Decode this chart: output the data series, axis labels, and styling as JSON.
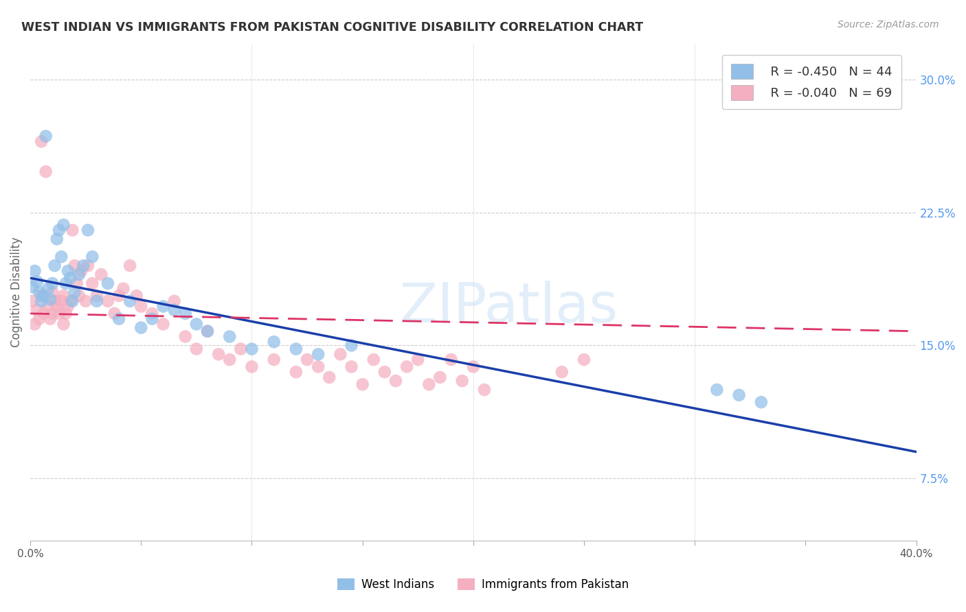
{
  "title": "WEST INDIAN VS IMMIGRANTS FROM PAKISTAN COGNITIVE DISABILITY CORRELATION CHART",
  "source": "Source: ZipAtlas.com",
  "ylabel": "Cognitive Disability",
  "x_min": 0.0,
  "x_max": 0.4,
  "y_min": 0.04,
  "y_max": 0.32,
  "y_ticks": [
    0.075,
    0.15,
    0.225,
    0.3
  ],
  "y_tick_labels": [
    "7.5%",
    "15.0%",
    "22.5%",
    "30.0%"
  ],
  "legend_r1": "R = -0.450",
  "legend_n1": "N = 44",
  "legend_r2": "R = -0.040",
  "legend_n2": "N = 69",
  "color_blue": "#91bfe8",
  "color_pink": "#f4afc0",
  "color_blue_line": "#1a3faa",
  "color_pink_line": "#dd3366",
  "watermark": "ZIPatlas",
  "background_color": "#ffffff",
  "west_indian_x": [
    0.001,
    0.002,
    0.003,
    0.004,
    0.005,
    0.006,
    0.007,
    0.008,
    0.009,
    0.01,
    0.011,
    0.012,
    0.013,
    0.014,
    0.015,
    0.016,
    0.017,
    0.018,
    0.019,
    0.02,
    0.022,
    0.024,
    0.026,
    0.028,
    0.03,
    0.035,
    0.04,
    0.045,
    0.05,
    0.055,
    0.06,
    0.065,
    0.07,
    0.075,
    0.08,
    0.09,
    0.1,
    0.11,
    0.12,
    0.13,
    0.145,
    0.31,
    0.32,
    0.33
  ],
  "west_indian_y": [
    0.183,
    0.192,
    0.186,
    0.18,
    0.175,
    0.178,
    0.268,
    0.182,
    0.176,
    0.185,
    0.195,
    0.21,
    0.215,
    0.2,
    0.218,
    0.185,
    0.192,
    0.188,
    0.175,
    0.18,
    0.19,
    0.195,
    0.215,
    0.2,
    0.175,
    0.185,
    0.165,
    0.175,
    0.16,
    0.165,
    0.172,
    0.17,
    0.168,
    0.162,
    0.158,
    0.155,
    0.148,
    0.152,
    0.148,
    0.145,
    0.15,
    0.125,
    0.122,
    0.118
  ],
  "pakistan_x": [
    0.001,
    0.002,
    0.003,
    0.004,
    0.005,
    0.005,
    0.006,
    0.007,
    0.008,
    0.009,
    0.01,
    0.01,
    0.011,
    0.012,
    0.013,
    0.014,
    0.015,
    0.015,
    0.016,
    0.017,
    0.018,
    0.019,
    0.02,
    0.021,
    0.022,
    0.023,
    0.025,
    0.026,
    0.028,
    0.03,
    0.032,
    0.035,
    0.038,
    0.04,
    0.042,
    0.045,
    0.048,
    0.05,
    0.055,
    0.06,
    0.065,
    0.07,
    0.075,
    0.08,
    0.085,
    0.09,
    0.095,
    0.1,
    0.11,
    0.12,
    0.125,
    0.13,
    0.135,
    0.14,
    0.145,
    0.15,
    0.155,
    0.16,
    0.165,
    0.17,
    0.175,
    0.18,
    0.185,
    0.19,
    0.195,
    0.2,
    0.205,
    0.24,
    0.25
  ],
  "pakistan_y": [
    0.175,
    0.162,
    0.17,
    0.165,
    0.178,
    0.265,
    0.168,
    0.248,
    0.172,
    0.165,
    0.18,
    0.168,
    0.175,
    0.172,
    0.168,
    0.175,
    0.178,
    0.162,
    0.168,
    0.172,
    0.175,
    0.215,
    0.195,
    0.185,
    0.178,
    0.192,
    0.175,
    0.195,
    0.185,
    0.178,
    0.19,
    0.175,
    0.168,
    0.178,
    0.182,
    0.195,
    0.178,
    0.172,
    0.168,
    0.162,
    0.175,
    0.155,
    0.148,
    0.158,
    0.145,
    0.142,
    0.148,
    0.138,
    0.142,
    0.135,
    0.142,
    0.138,
    0.132,
    0.145,
    0.138,
    0.128,
    0.142,
    0.135,
    0.13,
    0.138,
    0.142,
    0.128,
    0.132,
    0.142,
    0.13,
    0.138,
    0.125,
    0.135,
    0.142
  ],
  "blue_line_x0": 0.0,
  "blue_line_y0": 0.188,
  "blue_line_x1": 0.4,
  "blue_line_y1": 0.09,
  "pink_line_x0": 0.0,
  "pink_line_y0": 0.168,
  "pink_line_x1": 0.4,
  "pink_line_y1": 0.158
}
